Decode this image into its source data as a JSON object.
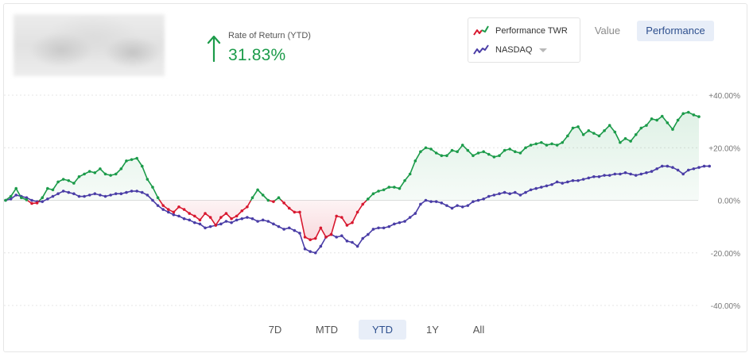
{
  "summary": {
    "rate_label": "Rate of Return (YTD)",
    "rate_value": "31.83%",
    "direction_icon": "arrow-up-icon",
    "positive_color": "#1c9b4a"
  },
  "legend": {
    "items": [
      {
        "label": "Performance TWR",
        "colors": [
          "#1c9b4a",
          "#d8182f"
        ]
      },
      {
        "label": "NASDAQ",
        "color": "#4a3da6"
      }
    ]
  },
  "view_toggle": {
    "options": [
      "Value",
      "Performance"
    ],
    "selected": "Performance"
  },
  "time_ranges": {
    "options": [
      "7D",
      "MTD",
      "YTD",
      "1Y",
      "All"
    ],
    "selected": "YTD"
  },
  "chart_data": {
    "type": "line",
    "y_unit": "%",
    "ylim": [
      -40,
      40
    ],
    "y_ticks": [
      "+40.00%",
      "+20.00%",
      "0.00%",
      "-20.00%",
      "-40.00%"
    ],
    "grid": true,
    "legend_position": "top-right",
    "series": [
      {
        "name": "Performance TWR",
        "color_positive": "#1c9b4a",
        "color_negative": "#d8182f",
        "values": [
          0.0,
          1.5,
          4.5,
          1.0,
          0.2,
          -1.2,
          -1.0,
          1.0,
          4.5,
          4.0,
          7.0,
          8.0,
          7.5,
          6.5,
          9.0,
          10.0,
          11.0,
          10.5,
          12.0,
          10.0,
          9.5,
          10.0,
          12.0,
          15.0,
          15.5,
          16.0,
          13.0,
          8.0,
          5.0,
          1.0,
          -2.0,
          -3.5,
          -4.5,
          -2.5,
          -3.5,
          -5.0,
          -6.0,
          -7.5,
          -5.0,
          -6.5,
          -9.5,
          -6.5,
          -5.0,
          -7.0,
          -6.0,
          -4.0,
          -2.5,
          1.0,
          4.0,
          2.0,
          0.0,
          -0.5,
          1.0,
          -1.0,
          -3.0,
          -4.5,
          -4.5,
          -14.0,
          -15.0,
          -14.5,
          -10.5,
          -14.0,
          -13.0,
          -6.0,
          -6.5,
          -9.5,
          -8.5,
          -4.5,
          -1.5,
          0.5,
          2.5,
          3.5,
          4.0,
          5.0,
          5.0,
          4.5,
          7.5,
          10.0,
          15.0,
          18.5,
          20.0,
          19.5,
          18.0,
          17.0,
          17.0,
          19.0,
          18.5,
          21.0,
          19.0,
          17.0,
          18.0,
          18.5,
          17.5,
          16.5,
          17.0,
          19.0,
          19.5,
          18.5,
          18.0,
          20.0,
          21.0,
          21.5,
          22.0,
          21.0,
          21.5,
          21.0,
          22.0,
          24.5,
          27.5,
          28.0,
          25.0,
          26.5,
          25.5,
          24.5,
          26.5,
          28.5,
          26.0,
          22.0,
          23.5,
          22.5,
          25.0,
          27.5,
          28.5,
          31.0,
          30.5,
          32.0,
          29.5,
          27.0,
          30.5,
          33.0,
          33.5,
          32.5,
          31.83
        ]
      },
      {
        "name": "NASDAQ",
        "color": "#4a3da6",
        "values": [
          0.0,
          0.5,
          2.0,
          1.5,
          1.0,
          0.0,
          -0.5,
          -0.5,
          0.5,
          1.5,
          2.5,
          3.5,
          3.0,
          2.5,
          1.5,
          1.5,
          2.0,
          2.5,
          2.0,
          1.5,
          2.0,
          2.5,
          2.5,
          3.0,
          3.5,
          3.5,
          3.0,
          2.0,
          0.0,
          -2.0,
          -3.5,
          -4.5,
          -5.5,
          -6.0,
          -7.0,
          -7.5,
          -8.5,
          -9.0,
          -10.5,
          -10.0,
          -9.5,
          -9.0,
          -8.0,
          -8.5,
          -7.5,
          -7.0,
          -6.5,
          -7.0,
          -8.0,
          -7.5,
          -8.0,
          -9.0,
          -10.0,
          -11.0,
          -10.5,
          -11.5,
          -12.5,
          -18.5,
          -19.5,
          -20.0,
          -17.5,
          -14.0,
          -13.0,
          -14.0,
          -13.5,
          -15.5,
          -16.0,
          -17.5,
          -14.5,
          -13.0,
          -11.0,
          -10.5,
          -10.5,
          -10.0,
          -9.0,
          -8.5,
          -8.0,
          -6.5,
          -5.0,
          -1.5,
          0.0,
          -0.5,
          -0.5,
          -1.0,
          -2.0,
          -3.0,
          -2.0,
          -2.5,
          -2.0,
          -0.5,
          0.0,
          0.5,
          1.5,
          2.0,
          2.5,
          3.0,
          2.5,
          3.0,
          2.0,
          3.0,
          4.0,
          4.5,
          5.0,
          5.5,
          6.0,
          7.0,
          6.5,
          7.0,
          7.5,
          7.5,
          8.0,
          8.5,
          9.0,
          9.0,
          9.5,
          9.5,
          10.0,
          10.0,
          10.5,
          10.0,
          9.5,
          10.0,
          10.5,
          11.0,
          12.0,
          13.0,
          13.0,
          12.5,
          11.5,
          10.0,
          11.5,
          12.0,
          12.5,
          13.0,
          13.0
        ]
      }
    ]
  }
}
